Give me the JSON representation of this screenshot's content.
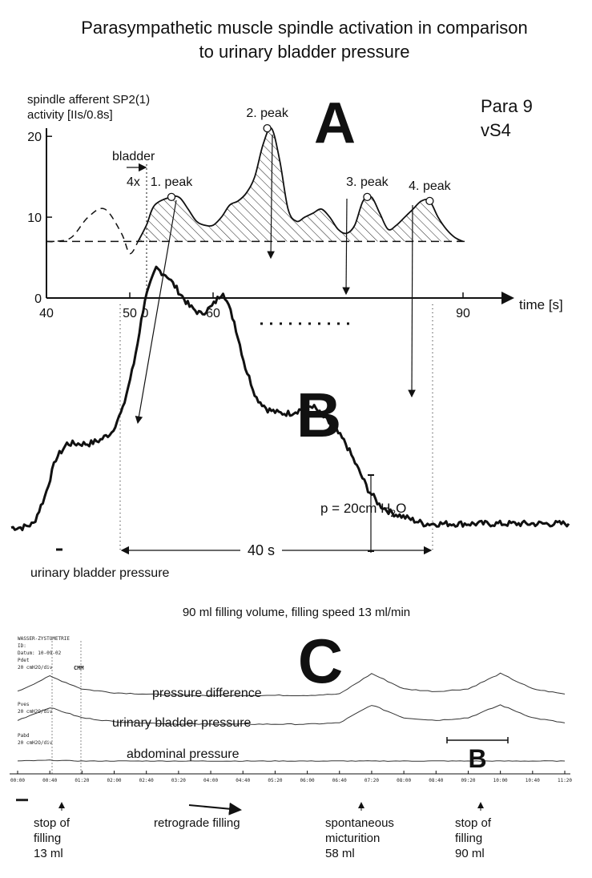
{
  "title": {
    "line1": "Parasympathetic muscle spindle activation in comparison",
    "line2": "to urinary bladder pressure"
  },
  "panel_a": {
    "letter": "A",
    "ylabel_line1": "spindle afferent SP2(1)",
    "ylabel_line2": "activity [IIs/0.8s]",
    "subject_line1": "Para 9",
    "subject_line2": "vS4",
    "bladder_label": "bladder",
    "bladder_factor": "4x",
    "xlabel": "time [s]",
    "extra_zero_tick": "0",
    "peak_labels": [
      "1. peak",
      "2. peak",
      "3. peak",
      "4. peak"
    ]
  },
  "panel_b": {
    "letter": "B",
    "ylabel": "urinary bladder pressure",
    "pressure_scale": "p = 20cm H",
    "pressure_sub": "2",
    "pressure_unit": "O",
    "duration": "40 s"
  },
  "panel_c": {
    "letter": "C",
    "header": "90 ml filling volume, filling speed 13 ml/min",
    "traces": [
      "pressure difference",
      "urinary bladder pressure",
      "abdominal pressure"
    ],
    "bracket_label": "B",
    "printout_header": [
      "WASSER-ZYSTOMETRIE",
      "ID:",
      "Datum: 10-09-02",
      "Pdet",
      "20 cmH2O/div",
      "Pves",
      "20 cmH2O/div",
      "Pabd",
      "20 cmH2O/div"
    ],
    "printout_marks": [
      "CMM"
    ],
    "time_ticks": [
      "00:00",
      "00:40",
      "01:20",
      "02:00",
      "02:40",
      "03:20",
      "04:00",
      "04:40",
      "05:20",
      "06:00",
      "06:40",
      "07:20",
      "08:00",
      "08:40",
      "09:20",
      "10:00",
      "10:40",
      "11:20"
    ],
    "annotations": [
      {
        "lines": [
          "stop of",
          "filling",
          "13 ml"
        ]
      },
      {
        "lines": [
          "retrograde filling"
        ]
      },
      {
        "lines": [
          "spontaneous",
          "micturition",
          "58 ml"
        ]
      },
      {
        "lines": [
          "stop of",
          "filling",
          "90 ml"
        ]
      }
    ]
  },
  "chart_data": [
    {
      "type": "line",
      "title": "A",
      "ylabel": "spindle afferent SP2(1) activity [IIs/0.8s]",
      "xlabel": "time [s]",
      "xlim": [
        40,
        95
      ],
      "ylim": [
        0,
        22
      ],
      "xticks": [
        40,
        50,
        60,
        90
      ],
      "yticks": [
        0,
        10,
        20
      ],
      "baseline": 7,
      "series": [
        {
          "x": [
            40,
            41,
            43,
            45,
            47,
            49,
            50,
            51,
            52,
            53,
            55,
            56,
            57,
            58,
            59,
            60,
            61,
            62,
            63,
            64,
            65,
            66,
            67,
            68,
            69,
            70,
            71,
            72,
            73,
            74,
            75,
            76,
            77,
            78,
            79,
            80,
            81,
            82,
            83,
            84,
            85,
            86,
            87,
            88,
            89,
            90
          ],
          "y": [
            7,
            7,
            7.5,
            10,
            11,
            8,
            5.5,
            7,
            9,
            11.5,
            12.5,
            12.4,
            11,
            9.5,
            9,
            9,
            10,
            11.5,
            12,
            13,
            15,
            19,
            21,
            17,
            11,
            9.5,
            10,
            10.5,
            11,
            10,
            8.5,
            8,
            9,
            12,
            12.5,
            10.5,
            8.5,
            9,
            10,
            11,
            12,
            12,
            10,
            8.5,
            7.5,
            7
          ]
        }
      ],
      "peaks": [
        {
          "label": "1. peak",
          "x": 55,
          "y": 12.5
        },
        {
          "label": "2. peak",
          "x": 66.5,
          "y": 21
        },
        {
          "label": "3. peak",
          "x": 78.5,
          "y": 12.5
        },
        {
          "label": "4. peak",
          "x": 86,
          "y": 12
        }
      ]
    },
    {
      "type": "line",
      "title": "B",
      "ylabel": "urinary bladder pressure",
      "series": [
        {
          "x": [
            0,
            2,
            4,
            6,
            8,
            10,
            12,
            14,
            16,
            18,
            20,
            22,
            24,
            26,
            28,
            30,
            32,
            34,
            36,
            38,
            40,
            42,
            44,
            46,
            48,
            50,
            52,
            54,
            56,
            58,
            60,
            62,
            64,
            66,
            68,
            70,
            72,
            74,
            76,
            78,
            80,
            82,
            84,
            86,
            88,
            90,
            92,
            94,
            96,
            98,
            100
          ],
          "y": [
            2,
            2,
            3,
            10,
            20,
            24,
            24,
            24,
            25,
            27,
            33,
            45,
            62,
            70,
            68,
            64,
            60,
            58,
            60,
            64,
            56,
            44,
            36,
            33,
            32,
            32,
            33,
            34,
            31,
            28,
            24,
            18,
            12,
            8,
            6,
            5,
            4,
            3,
            3,
            3,
            3,
            3,
            3,
            3,
            3,
            3,
            3,
            3,
            3,
            3,
            3
          ]
        }
      ]
    },
    {
      "type": "line",
      "title": "C",
      "xlabel": "time",
      "categories": [
        "00:00",
        "00:40",
        "01:20",
        "02:00",
        "02:40",
        "03:20",
        "04:00",
        "04:40",
        "05:20",
        "06:00",
        "06:40",
        "07:20",
        "08:00",
        "08:40",
        "09:20",
        "10:00",
        "10:40",
        "11:20"
      ],
      "series": [
        {
          "name": "pressure difference",
          "values": [
            8,
            20,
            10,
            7,
            6,
            5,
            5,
            5,
            5,
            5,
            6,
            22,
            10,
            8,
            10,
            22,
            10,
            6
          ]
        },
        {
          "name": "urinary bladder pressure",
          "values": [
            8,
            18,
            10,
            7,
            6,
            5,
            5,
            5,
            5,
            5,
            6,
            20,
            10,
            8,
            10,
            20,
            10,
            6
          ]
        },
        {
          "name": "abdominal pressure",
          "values": [
            2,
            3,
            2,
            2,
            2,
            2,
            2,
            2,
            2,
            2,
            2,
            2,
            2,
            2,
            2,
            2,
            2,
            2
          ]
        }
      ]
    }
  ]
}
